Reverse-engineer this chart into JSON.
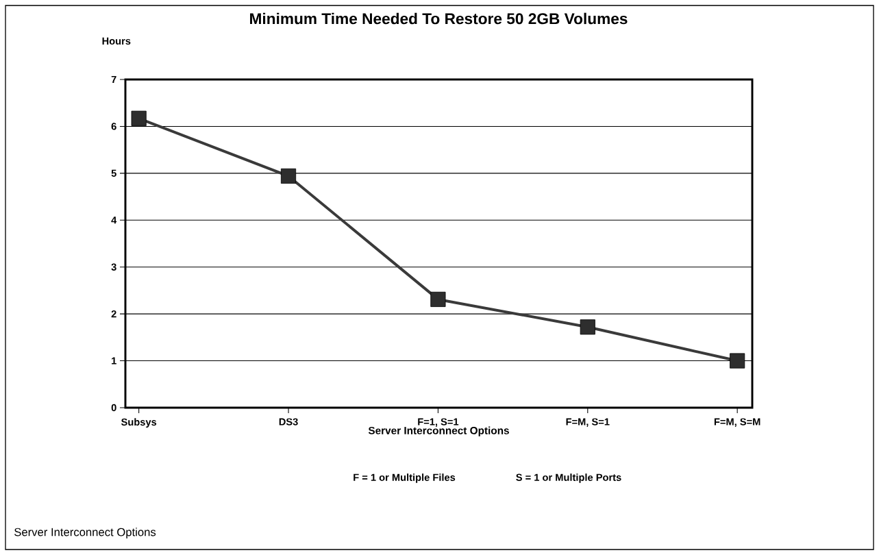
{
  "chart_data": {
    "type": "line",
    "title": "Minimum Time Needed To Restore 50 2GB Volumes",
    "ylabel": "Hours",
    "xlabel": "Server Interconnect Options",
    "categories": [
      "Subsys",
      "DS3",
      "F=1, S=1",
      "F=M, S=1",
      "F=M, S=M"
    ],
    "values": [
      6.17,
      4.94,
      2.31,
      1.72,
      1.0
    ],
    "color": "#3a3a3a",
    "marker": "square",
    "line_style": "solid",
    "ylim": [
      0,
      7
    ],
    "yticks": [
      0,
      1,
      2,
      3,
      4,
      5,
      6,
      7
    ],
    "grid": "y",
    "annotations": [
      "F = 1 or Multiple Files",
      "S = 1 or Multiple Ports",
      "Server Interconnect Options"
    ]
  }
}
